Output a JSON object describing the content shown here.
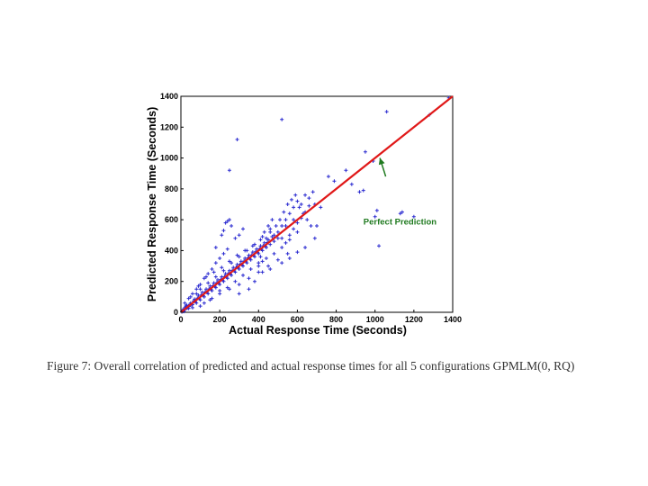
{
  "caption": "Figure 7: Overall correlation of predicted and actual response times for all 5 configurations GPMLM(0, RQ)",
  "chart_data": {
    "type": "scatter",
    "title": "",
    "xlabel": "Actual Response Time (Seconds)",
    "ylabel": "Predicted Response Time (Seconds)",
    "xlim": [
      0,
      1400
    ],
    "ylim": [
      0,
      1400
    ],
    "xticks": [
      0,
      200,
      400,
      600,
      800,
      1000,
      1200,
      1400
    ],
    "yticks": [
      0,
      200,
      400,
      600,
      800,
      1000,
      1200,
      1400
    ],
    "grid": false,
    "colors": {
      "points": "#2a2ad0",
      "line": "#e01818",
      "annotation": "#1f7a1f"
    },
    "reference_line": {
      "name": "Perfect Prediction",
      "x": [
        0,
        1400
      ],
      "y": [
        0,
        1400
      ]
    },
    "annotation": {
      "text": "Perfect Prediction",
      "text_at": [
        940,
        570
      ],
      "arrow_from": [
        1055,
        880
      ],
      "arrow_to": [
        1025,
        1000
      ]
    },
    "points": [
      [
        10,
        15
      ],
      [
        20,
        30
      ],
      [
        15,
        5
      ],
      [
        30,
        45
      ],
      [
        40,
        25
      ],
      [
        50,
        60
      ],
      [
        25,
        40
      ],
      [
        60,
        50
      ],
      [
        70,
        85
      ],
      [
        80,
        60
      ],
      [
        90,
        110
      ],
      [
        100,
        80
      ],
      [
        110,
        130
      ],
      [
        120,
        100
      ],
      [
        130,
        150
      ],
      [
        140,
        120
      ],
      [
        150,
        170
      ],
      [
        160,
        140
      ],
      [
        170,
        190
      ],
      [
        180,
        160
      ],
      [
        190,
        210
      ],
      [
        200,
        180
      ],
      [
        210,
        230
      ],
      [
        220,
        200
      ],
      [
        230,
        250
      ],
      [
        240,
        220
      ],
      [
        250,
        270
      ],
      [
        260,
        240
      ],
      [
        270,
        290
      ],
      [
        280,
        260
      ],
      [
        290,
        310
      ],
      [
        300,
        280
      ],
      [
        310,
        330
      ],
      [
        320,
        300
      ],
      [
        330,
        350
      ],
      [
        340,
        320
      ],
      [
        350,
        370
      ],
      [
        360,
        340
      ],
      [
        370,
        390
      ],
      [
        380,
        360
      ],
      [
        390,
        410
      ],
      [
        400,
        380
      ],
      [
        410,
        430
      ],
      [
        420,
        400
      ],
      [
        430,
        450
      ],
      [
        440,
        420
      ],
      [
        450,
        470
      ],
      [
        460,
        440
      ],
      [
        470,
        490
      ],
      [
        480,
        460
      ],
      [
        60,
        120
      ],
      [
        80,
        150
      ],
      [
        100,
        180
      ],
      [
        120,
        220
      ],
      [
        140,
        250
      ],
      [
        160,
        280
      ],
      [
        180,
        320
      ],
      [
        200,
        350
      ],
      [
        220,
        380
      ],
      [
        240,
        410
      ],
      [
        100,
        40
      ],
      [
        150,
        80
      ],
      [
        200,
        120
      ],
      [
        250,
        150
      ],
      [
        300,
        180
      ],
      [
        350,
        220
      ],
      [
        400,
        260
      ],
      [
        450,
        300
      ],
      [
        500,
        340
      ],
      [
        550,
        380
      ],
      [
        50,
        100
      ],
      [
        90,
        170
      ],
      [
        130,
        230
      ],
      [
        170,
        260
      ],
      [
        210,
        290
      ],
      [
        250,
        330
      ],
      [
        290,
        370
      ],
      [
        330,
        400
      ],
      [
        370,
        430
      ],
      [
        410,
        470
      ],
      [
        20,
        60
      ],
      [
        40,
        90
      ],
      [
        60,
        30
      ],
      [
        80,
        120
      ],
      [
        100,
        150
      ],
      [
        120,
        60
      ],
      [
        140,
        190
      ],
      [
        160,
        90
      ],
      [
        180,
        230
      ],
      [
        200,
        140
      ],
      [
        220,
        270
      ],
      [
        240,
        160
      ],
      [
        260,
        320
      ],
      [
        280,
        200
      ],
      [
        300,
        360
      ],
      [
        320,
        240
      ],
      [
        340,
        400
      ],
      [
        360,
        280
      ],
      [
        380,
        440
      ],
      [
        400,
        320
      ],
      [
        420,
        490
      ],
      [
        440,
        350
      ],
      [
        460,
        520
      ],
      [
        480,
        380
      ],
      [
        500,
        480
      ],
      [
        520,
        420
      ],
      [
        540,
        560
      ],
      [
        560,
        470
      ],
      [
        580,
        600
      ],
      [
        600,
        520
      ],
      [
        500,
        520
      ],
      [
        520,
        560
      ],
      [
        540,
        600
      ],
      [
        560,
        640
      ],
      [
        580,
        680
      ],
      [
        600,
        720
      ],
      [
        620,
        700
      ],
      [
        640,
        760
      ],
      [
        660,
        740
      ],
      [
        680,
        780
      ],
      [
        510,
        600
      ],
      [
        530,
        650
      ],
      [
        550,
        700
      ],
      [
        570,
        730
      ],
      [
        590,
        760
      ],
      [
        610,
        680
      ],
      [
        630,
        640
      ],
      [
        650,
        600
      ],
      [
        670,
        560
      ],
      [
        690,
        700
      ],
      [
        520,
        480
      ],
      [
        540,
        450
      ],
      [
        560,
        500
      ],
      [
        580,
        540
      ],
      [
        600,
        580
      ],
      [
        620,
        610
      ],
      [
        640,
        650
      ],
      [
        660,
        690
      ],
      [
        700,
        560
      ],
      [
        720,
        680
      ],
      [
        460,
        540
      ],
      [
        470,
        600
      ],
      [
        480,
        500
      ],
      [
        490,
        560
      ],
      [
        430,
        520
      ],
      [
        440,
        480
      ],
      [
        450,
        560
      ],
      [
        410,
        360
      ],
      [
        420,
        330
      ],
      [
        400,
        300
      ],
      [
        240,
        590
      ],
      [
        230,
        580
      ],
      [
        250,
        600
      ],
      [
        220,
        530
      ],
      [
        260,
        560
      ],
      [
        210,
        500
      ],
      [
        280,
        480
      ],
      [
        300,
        500
      ],
      [
        320,
        540
      ],
      [
        180,
        420
      ],
      [
        300,
        120
      ],
      [
        350,
        150
      ],
      [
        380,
        200
      ],
      [
        420,
        260
      ],
      [
        460,
        280
      ],
      [
        520,
        320
      ],
      [
        560,
        350
      ],
      [
        600,
        390
      ],
      [
        640,
        420
      ],
      [
        690,
        480
      ],
      [
        250,
        920
      ],
      [
        290,
        1120
      ],
      [
        520,
        1250
      ],
      [
        760,
        880
      ],
      [
        790,
        850
      ],
      [
        850,
        920
      ],
      [
        950,
        1040
      ],
      [
        1060,
        1300
      ],
      [
        1280,
        1280
      ],
      [
        1380,
        1390
      ],
      [
        920,
        780
      ],
      [
        1000,
        620
      ],
      [
        1020,
        430
      ],
      [
        1140,
        650
      ],
      [
        1200,
        620
      ],
      [
        1130,
        640
      ],
      [
        1010,
        660
      ],
      [
        940,
        790
      ],
      [
        880,
        830
      ],
      [
        990,
        980
      ],
      [
        5,
        2
      ],
      [
        8,
        12
      ],
      [
        12,
        8
      ],
      [
        18,
        22
      ],
      [
        22,
        18
      ],
      [
        28,
        33
      ],
      [
        33,
        28
      ],
      [
        38,
        42
      ],
      [
        42,
        38
      ],
      [
        48,
        52
      ],
      [
        55,
        48
      ],
      [
        65,
        72
      ],
      [
        75,
        68
      ],
      [
        85,
        92
      ],
      [
        95,
        88
      ],
      [
        105,
        112
      ],
      [
        115,
        108
      ],
      [
        125,
        132
      ],
      [
        135,
        128
      ],
      [
        145,
        152
      ],
      [
        155,
        148
      ],
      [
        165,
        172
      ],
      [
        175,
        168
      ],
      [
        185,
        192
      ],
      [
        195,
        188
      ],
      [
        205,
        212
      ],
      [
        215,
        208
      ],
      [
        225,
        232
      ],
      [
        235,
        228
      ],
      [
        245,
        252
      ],
      [
        255,
        248
      ],
      [
        265,
        272
      ],
      [
        275,
        268
      ],
      [
        285,
        292
      ],
      [
        295,
        288
      ],
      [
        305,
        312
      ],
      [
        315,
        308
      ],
      [
        325,
        332
      ],
      [
        335,
        328
      ],
      [
        345,
        352
      ],
      [
        355,
        348
      ],
      [
        365,
        372
      ],
      [
        375,
        368
      ],
      [
        385,
        392
      ],
      [
        395,
        388
      ],
      [
        405,
        412
      ],
      [
        415,
        408
      ],
      [
        425,
        432
      ],
      [
        435,
        428
      ],
      [
        445,
        452
      ]
    ]
  }
}
